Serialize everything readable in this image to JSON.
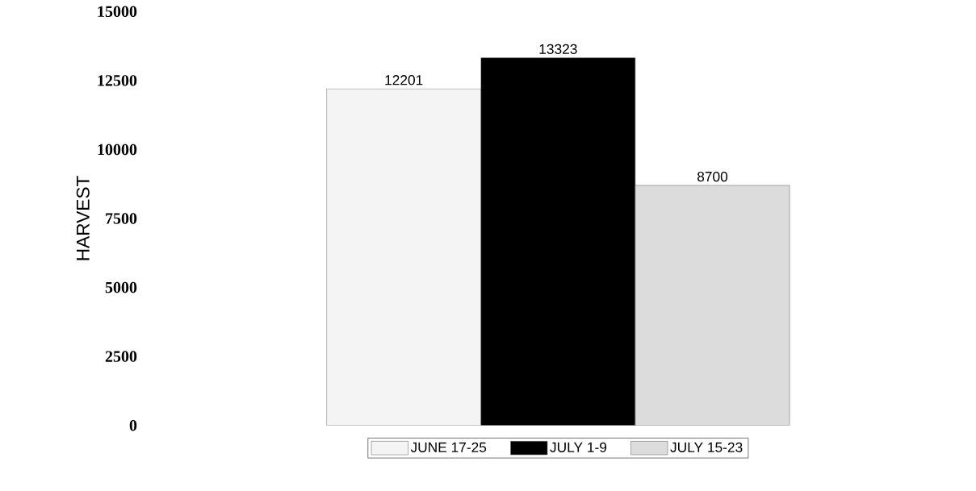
{
  "chart_data": {
    "type": "bar",
    "ylabel": "HARVEST",
    "categories": [
      null
    ],
    "series": [
      {
        "name": "JUNE 17-25",
        "color": "#f4f4f4",
        "values": [
          12201
        ]
      },
      {
        "name": "JULY 1-9",
        "color": "#000000",
        "values": [
          13323
        ]
      },
      {
        "name": "JULY 15-23",
        "color": "#dcdcdc",
        "values": [
          8700
        ]
      }
    ],
    "ylim": [
      0,
      15000
    ],
    "yticks": [
      0,
      2500,
      5000,
      7500,
      10000,
      12500,
      15000
    ],
    "data_labels": true,
    "legend": "bottom"
  }
}
